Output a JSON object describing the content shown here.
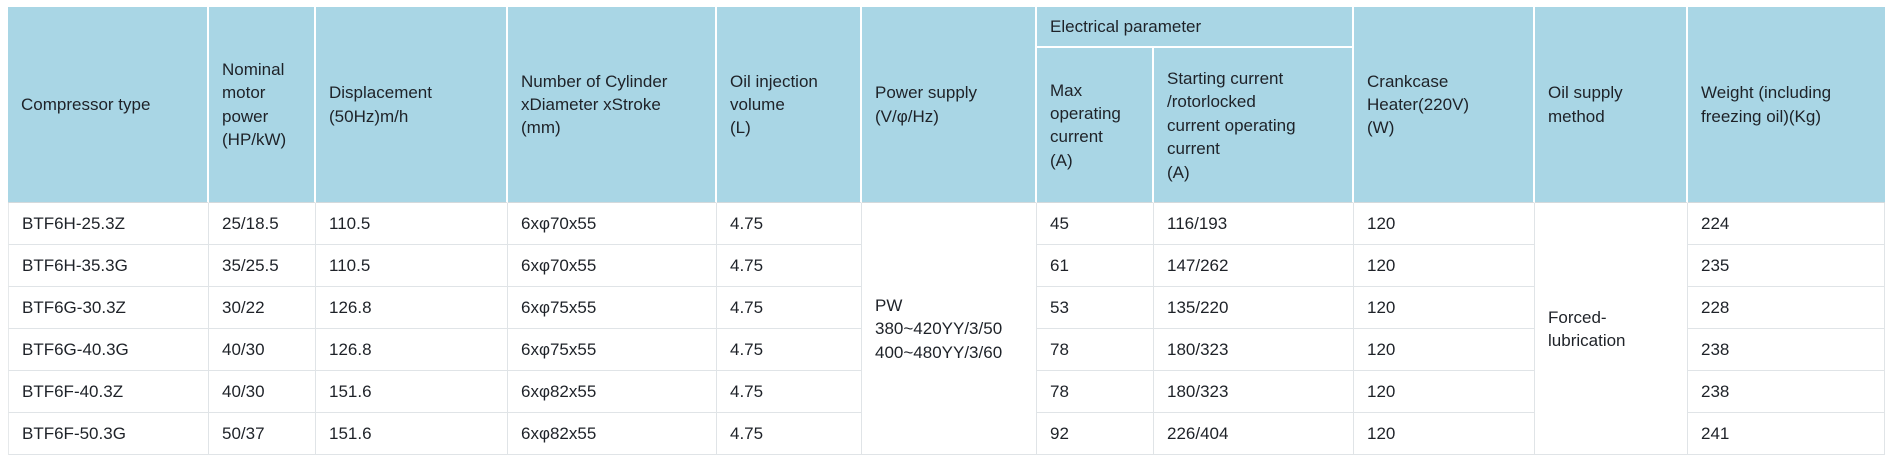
{
  "table": {
    "title_semantic": "compressor-specification-table",
    "colors": {
      "header_bg": "#a9d6e5",
      "header_divider": "#ffffff",
      "grid_line": "#e0e4e7",
      "text": "#1e2228"
    },
    "headers": {
      "compressor_type": "Compressor type",
      "nominal_motor_power": "Nominal\nmotor\npower\n(HP/kW)",
      "displacement": "Displacement\n(50Hz)m/h",
      "cylinder": "Number of Cylinder\nxDiameter xStroke\n(mm)",
      "oil_injection": "Oil injection\nvolume\n(L)",
      "power_supply": "Power supply\n(V/φ/Hz)",
      "electrical_parameter": "Electrical parameter",
      "max_operating_current": "Max\noperating\ncurrent\n(A)",
      "starting_current": "Starting current\n/rotorlocked\ncurrent operating\ncurrent\n(A)",
      "crankcase_heater": "Crankcase\nHeater(220V)\n(W)",
      "oil_supply_method": "Oil supply\nmethod",
      "weight": "Weight (including\nfreezing oil)(Kg)"
    },
    "merged": {
      "power_supply": "PW\n380~420YY/3/50\n400~480YY/3/60",
      "oil_supply_method": "Forced-\nlubrication"
    },
    "rows": [
      {
        "type": "BTF6H-25.3Z",
        "power": "25/18.5",
        "displacement": "110.5",
        "cylinder": "6xφ70x55",
        "oil_volume": "4.75",
        "max_current": "45",
        "starting_current": "116/193",
        "heater": "120",
        "weight": "224"
      },
      {
        "type": "BTF6H-35.3G",
        "power": "35/25.5",
        "displacement": "110.5",
        "cylinder": "6xφ70x55",
        "oil_volume": "4.75",
        "max_current": "61",
        "starting_current": "147/262",
        "heater": "120",
        "weight": "235"
      },
      {
        "type": "BTF6G-30.3Z",
        "power": "30/22",
        "displacement": "126.8",
        "cylinder": "6xφ75x55",
        "oil_volume": "4.75",
        "max_current": "53",
        "starting_current": "135/220",
        "heater": "120",
        "weight": "228"
      },
      {
        "type": "BTF6G-40.3G",
        "power": "40/30",
        "displacement": "126.8",
        "cylinder": "6xφ75x55",
        "oil_volume": "4.75",
        "max_current": "78",
        "starting_current": "180/323",
        "heater": "120",
        "weight": "238"
      },
      {
        "type": "BTF6F-40.3Z",
        "power": "40/30",
        "displacement": "151.6",
        "cylinder": "6xφ82x55",
        "oil_volume": "4.75",
        "max_current": "78",
        "starting_current": "180/323",
        "heater": "120",
        "weight": "238"
      },
      {
        "type": "BTF6F-50.3G",
        "power": "50/37",
        "displacement": "151.6",
        "cylinder": "6xφ82x55",
        "oil_volume": "4.75",
        "max_current": "92",
        "starting_current": "226/404",
        "heater": "120",
        "weight": "241"
      }
    ]
  }
}
